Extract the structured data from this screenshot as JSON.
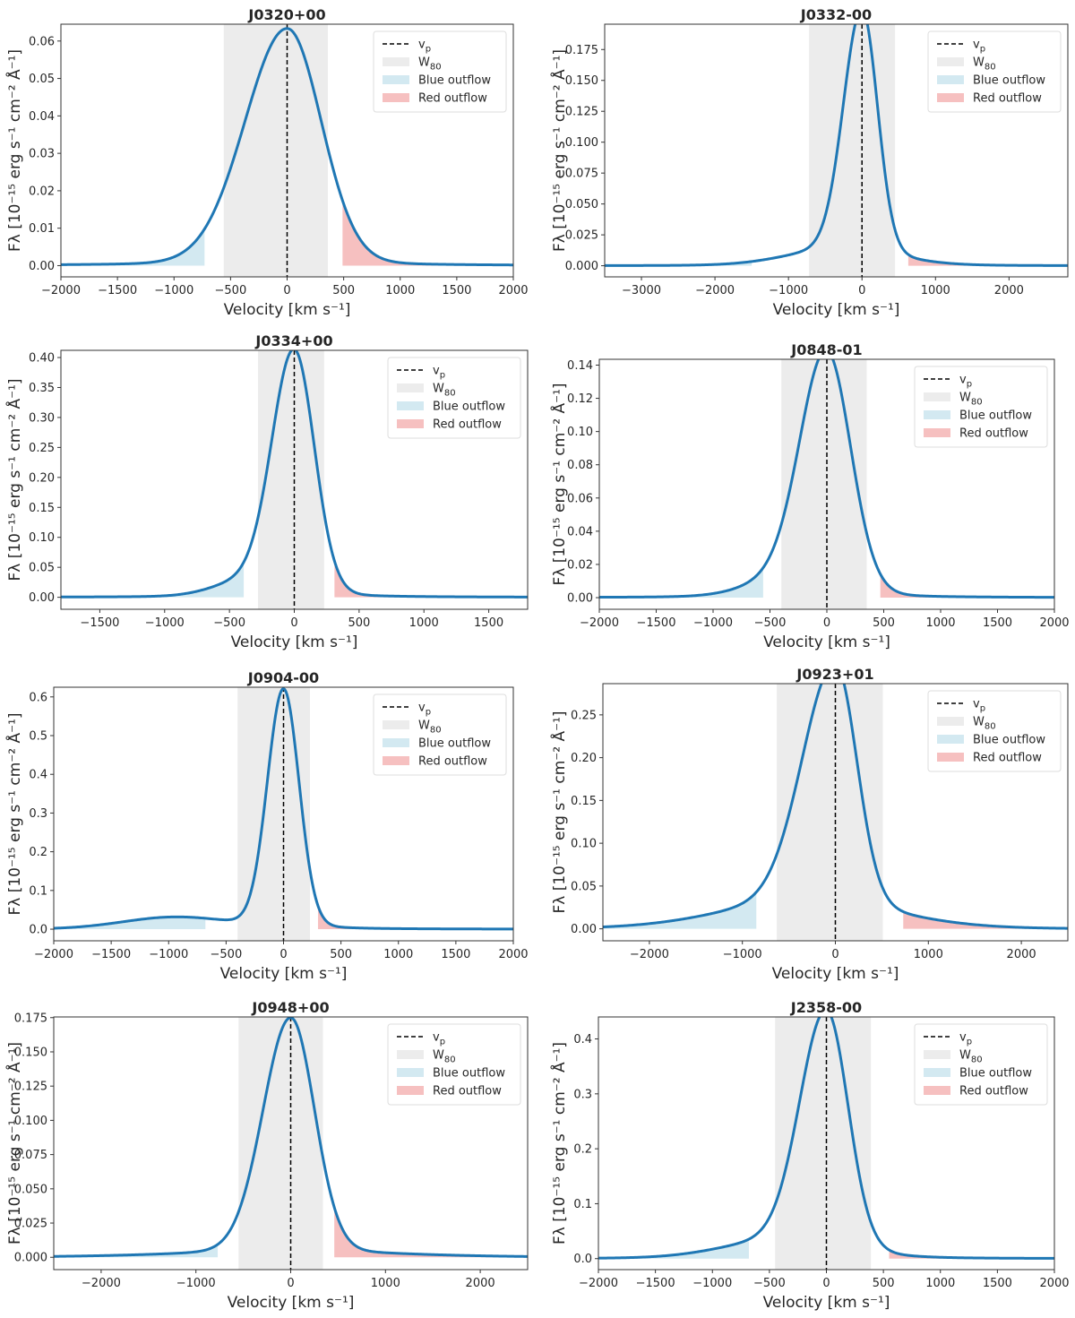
{
  "colors": {
    "curve": "#1f77b4",
    "w80": "#ececec",
    "blue_outflow": "#d3e9f1",
    "red_outflow": "#f6c0c0",
    "peak_line": "#000000",
    "axes": "#333333"
  },
  "common": {
    "xlabel": "Velocity [km s⁻¹]",
    "ylabel": "Fλ [10⁻¹⁵ erg s⁻¹ cm⁻² Å⁻¹]",
    "legend": {
      "vp": "v_p",
      "w80": "W_80",
      "blue": "Blue outflow",
      "red": "Red outflow"
    }
  },
  "chart_data": [
    {
      "type": "line",
      "title": "J0320+00",
      "xlim": [
        -2000,
        2000
      ],
      "ylim": [
        -0.003,
        0.0645
      ],
      "xticks": [
        -2000,
        -1500,
        -1000,
        -500,
        0,
        500,
        1000,
        1500,
        2000
      ],
      "xtick_labels": [
        "−2000",
        "−1500",
        "−1000",
        "−500",
        "0",
        "500",
        "1000",
        "1500",
        "2000"
      ],
      "yticks": [
        0,
        0.01,
        0.02,
        0.03,
        0.04,
        0.05,
        0.06
      ],
      "ytick_labels": [
        "0.00",
        "0.01",
        "0.02",
        "0.03",
        "0.04",
        "0.05",
        "0.06"
      ],
      "peak": 0.0615,
      "v_peak": 0,
      "sigma_left": 370,
      "sigma_right": 300,
      "wing_amp": 0,
      "wing_center": 0,
      "wing_sigma": 1,
      "w80": [
        -560,
        360
      ],
      "blue_outflow": [
        -2000,
        -730
      ],
      "red_outflow": [
        490,
        2000
      ]
    },
    {
      "type": "line",
      "title": "J0332-00",
      "xlim": [
        -3500,
        2800
      ],
      "ylim": [
        -0.009,
        0.1955
      ],
      "xticks": [
        -3000,
        -2000,
        -1000,
        0,
        1000,
        2000
      ],
      "xtick_labels": [
        "−3000",
        "−2000",
        "−1000",
        "0",
        "1000",
        "2000"
      ],
      "yticks": [
        0,
        0.025,
        0.05,
        0.075,
        0.1,
        0.125,
        0.15,
        0.175
      ],
      "ytick_labels": [
        "0.000",
        "0.025",
        "0.050",
        "0.075",
        "0.100",
        "0.125",
        "0.150",
        "0.175"
      ],
      "peak": 0.191,
      "v_peak": 0,
      "sigma_left": 250,
      "sigma_right": 210,
      "wing_amp": 0.012,
      "wing_center": -300,
      "wing_sigma": 700,
      "w80": [
        -720,
        450
      ],
      "blue_outflow": [
        -3500,
        -1500
      ],
      "red_outflow": [
        630,
        2800
      ]
    },
    {
      "type": "line",
      "title": "J0334+00",
      "xlim": [
        -1800,
        1800
      ],
      "ylim": [
        -0.02,
        0.412
      ],
      "xticks": [
        -1500,
        -1000,
        -500,
        0,
        500,
        1000,
        1500
      ],
      "xtick_labels": [
        "−1500",
        "−1000",
        "−500",
        "0",
        "500",
        "1000",
        "1500"
      ],
      "yticks": [
        0,
        0.05,
        0.1,
        0.15,
        0.2,
        0.25,
        0.3,
        0.35,
        0.4
      ],
      "ytick_labels": [
        "0.00",
        "0.05",
        "0.10",
        "0.15",
        "0.20",
        "0.25",
        "0.30",
        "0.35",
        "0.40"
      ],
      "peak": 0.392,
      "v_peak": 0,
      "sigma_left": 170,
      "sigma_right": 155,
      "wing_amp": 0.025,
      "wing_center": -350,
      "wing_sigma": 260,
      "w80": [
        -280,
        230
      ],
      "blue_outflow": [
        -1800,
        -390
      ],
      "red_outflow": [
        310,
        1800
      ]
    },
    {
      "type": "line",
      "title": "J0848-01",
      "xlim": [
        -2000,
        2000
      ],
      "ylim": [
        -0.007,
        0.1435
      ],
      "xticks": [
        -2000,
        -1500,
        -1000,
        -500,
        0,
        500,
        1000,
        1500,
        2000
      ],
      "xtick_labels": [
        "−2000",
        "−1500",
        "−1000",
        "−500",
        "0",
        "500",
        "1000",
        "1500",
        "2000"
      ],
      "yticks": [
        0,
        0.02,
        0.04,
        0.06,
        0.08,
        0.1,
        0.12,
        0.14
      ],
      "ytick_labels": [
        "0.00",
        "0.02",
        "0.04",
        "0.06",
        "0.08",
        "0.10",
        "0.12",
        "0.14"
      ],
      "peak": 0.1365,
      "v_peak": 0,
      "sigma_left": 230,
      "sigma_right": 210,
      "wing_amp": 0.012,
      "wing_center": -300,
      "wing_sigma": 350,
      "w80": [
        -400,
        350
      ],
      "blue_outflow": [
        -2000,
        -560
      ],
      "red_outflow": [
        470,
        2000
      ]
    },
    {
      "type": "line",
      "title": "J0904-00",
      "xlim": [
        -2000,
        2000
      ],
      "ylim": [
        -0.03,
        0.625
      ],
      "xticks": [
        -2000,
        -1500,
        -1000,
        -500,
        0,
        500,
        1000,
        1500,
        2000
      ],
      "xtick_labels": [
        "−2000",
        "−1500",
        "−1000",
        "−500",
        "0",
        "500",
        "1000",
        "1500",
        "2000"
      ],
      "yticks": [
        0,
        0.1,
        0.2,
        0.3,
        0.4,
        0.5,
        0.6
      ],
      "ytick_labels": [
        "0.0",
        "0.1",
        "0.2",
        "0.3",
        "0.4",
        "0.5",
        "0.6"
      ],
      "peak": 0.6,
      "v_peak": 0,
      "sigma_left": 140,
      "sigma_right": 135,
      "wing_amp": 0.03,
      "wing_center": -950,
      "wing_sigma": 450,
      "w80": [
        -400,
        230
      ],
      "blue_outflow": [
        -2000,
        -680
      ],
      "red_outflow": [
        300,
        2000
      ]
    },
    {
      "type": "line",
      "title": "J0923+01",
      "xlim": [
        -2500,
        2500
      ],
      "ylim": [
        -0.014,
        0.2865
      ],
      "xticks": [
        -2000,
        -1000,
        0,
        1000,
        2000
      ],
      "xtick_labels": [
        "−2000",
        "−1000",
        "0",
        "1000",
        "2000"
      ],
      "yticks": [
        0,
        0.05,
        0.1,
        0.15,
        0.2,
        0.25
      ],
      "ytick_labels": [
        "0.00",
        "0.05",
        "0.10",
        "0.15",
        "0.20",
        "0.25"
      ],
      "peak": 0.273,
      "v_peak": 0,
      "sigma_left": 350,
      "sigma_right": 230,
      "wing_amp": 0.03,
      "wing_center": -300,
      "wing_sigma": 900,
      "w80": [
        -630,
        510
      ],
      "blue_outflow": [
        -2500,
        -850
      ],
      "red_outflow": [
        730,
        2500
      ]
    },
    {
      "type": "line",
      "title": "J0948+00",
      "xlim": [
        -2500,
        2500
      ],
      "ylim": [
        -0.009,
        0.1755
      ],
      "xticks": [
        -2000,
        -1000,
        0,
        1000,
        2000
      ],
      "xtick_labels": [
        "−2000",
        "−1000",
        "0",
        "1000",
        "2000"
      ],
      "yticks": [
        0,
        0.025,
        0.05,
        0.075,
        0.1,
        0.125,
        0.15,
        0.175
      ],
      "ytick_labels": [
        "0.000",
        "0.025",
        "0.050",
        "0.075",
        "0.100",
        "0.125",
        "0.150",
        "0.175"
      ],
      "peak": 0.167,
      "v_peak": 0,
      "sigma_left": 290,
      "sigma_right": 250,
      "wing_amp": 0.003,
      "wing_center": 0,
      "wing_sigma": 1200,
      "w80": [
        -550,
        340
      ],
      "blue_outflow": [
        -2500,
        -770
      ],
      "red_outflow": [
        460,
        2500
      ]
    },
    {
      "type": "line",
      "title": "J2358-00",
      "xlim": [
        -2000,
        2000
      ],
      "ylim": [
        -0.02,
        0.44
      ],
      "xticks": [
        -2000,
        -1500,
        -1000,
        -500,
        0,
        500,
        1000,
        1500,
        2000
      ],
      "xtick_labels": [
        "−2000",
        "−1500",
        "−1000",
        "−500",
        "0",
        "500",
        "1000",
        "1500",
        "2000"
      ],
      "yticks": [
        0,
        0.1,
        0.2,
        0.3,
        0.4
      ],
      "ytick_labels": [
        "0.0",
        "0.1",
        "0.2",
        "0.3",
        "0.4"
      ],
      "peak": 0.418,
      "v_peak": 0,
      "sigma_left": 230,
      "sigma_right": 190,
      "wing_amp": 0.03,
      "wing_center": -400,
      "wing_sigma": 500,
      "w80": [
        -450,
        390
      ],
      "blue_outflow": [
        -2000,
        -680
      ],
      "red_outflow": [
        550,
        2000
      ]
    }
  ]
}
